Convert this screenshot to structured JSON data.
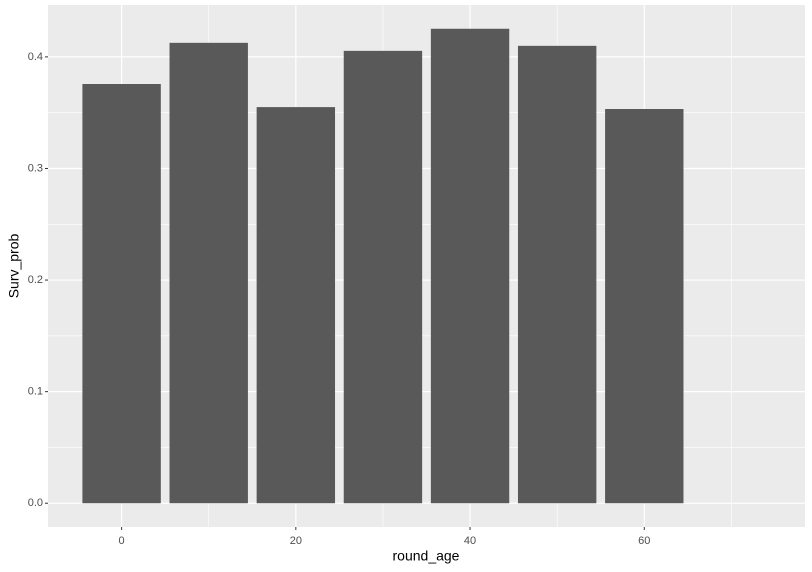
{
  "chart_data": {
    "type": "bar",
    "x_label": "round_age",
    "y_label": "Surv_prob",
    "x": [
      0,
      10,
      20,
      30,
      40,
      50,
      60
    ],
    "values": [
      0.3757,
      0.4126,
      0.355,
      0.4054,
      0.4252,
      0.4099,
      0.3533
    ],
    "color": "#595959",
    "xlim": [
      -8.45,
      78.45
    ],
    "xticks": [
      0,
      20,
      40,
      60
    ],
    "x_minor_ticks": [
      10,
      30,
      50,
      70
    ],
    "ylim": [
      -0.0213,
      0.4465
    ],
    "yticks": [
      {
        "value": 0,
        "label": "0.0"
      },
      0.1,
      0.2,
      0.3,
      0.4
    ],
    "y_minor_ticks": [
      0.05,
      0.15,
      0.25,
      0.35
    ],
    "grid": true
  }
}
